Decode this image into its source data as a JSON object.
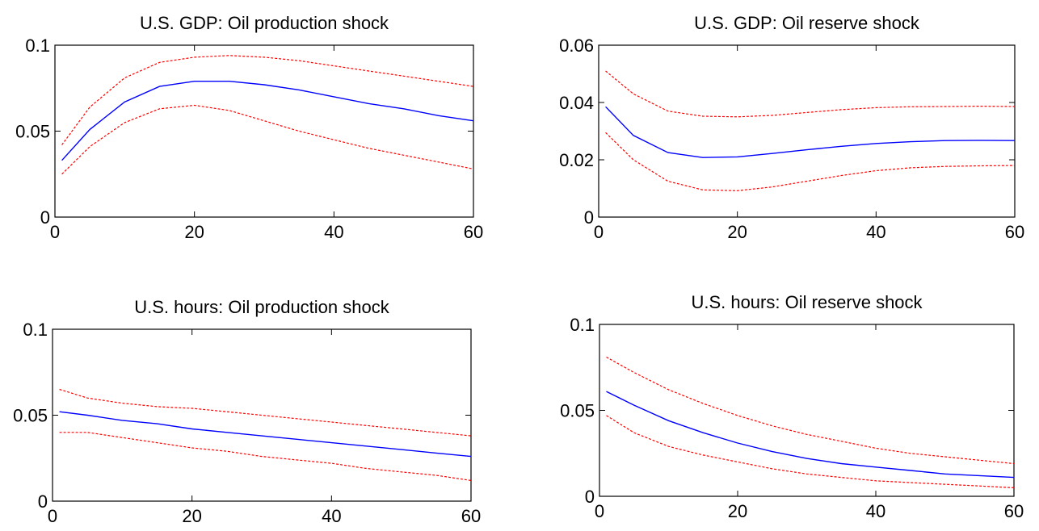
{
  "chart_data": [
    {
      "type": "line",
      "title": "U.S. GDP: Oil production shock",
      "xlim": [
        0,
        60
      ],
      "ylim": [
        0,
        0.1
      ],
      "xticks": [
        0,
        20,
        40,
        60
      ],
      "yticks": [
        0,
        0.05,
        0.1
      ],
      "xtick_labels": [
        "0",
        "20",
        "40",
        "60"
      ],
      "ytick_labels": [
        "0",
        "0.05",
        "0.1"
      ],
      "grid": false,
      "x": [
        1,
        5,
        10,
        15,
        20,
        25,
        30,
        35,
        40,
        45,
        50,
        55,
        60
      ],
      "series": [
        {
          "role": "estimate",
          "color": "#0000ff",
          "style": "solid",
          "values": [
            0.033,
            0.051,
            0.067,
            0.076,
            0.079,
            0.079,
            0.077,
            0.074,
            0.07,
            0.066,
            0.063,
            0.059,
            0.056
          ]
        },
        {
          "role": "upper",
          "color": "#ff0000",
          "style": "dashed",
          "values": [
            0.042,
            0.064,
            0.081,
            0.09,
            0.093,
            0.094,
            0.093,
            0.091,
            0.088,
            0.085,
            0.082,
            0.079,
            0.076
          ]
        },
        {
          "role": "lower",
          "color": "#ff0000",
          "style": "dashed",
          "values": [
            0.025,
            0.041,
            0.055,
            0.063,
            0.065,
            0.062,
            0.056,
            0.05,
            0.045,
            0.04,
            0.036,
            0.032,
            0.028
          ]
        }
      ]
    },
    {
      "type": "line",
      "title": "U.S. GDP: Oil reserve shock",
      "xlim": [
        0,
        60
      ],
      "ylim": [
        0,
        0.06
      ],
      "xticks": [
        0,
        20,
        40,
        60
      ],
      "yticks": [
        0,
        0.02,
        0.04,
        0.06
      ],
      "xtick_labels": [
        "0",
        "20",
        "40",
        "60"
      ],
      "ytick_labels": [
        "0",
        "0.02",
        "0.04",
        "0.06"
      ],
      "grid": false,
      "x": [
        1,
        5,
        10,
        15,
        20,
        25,
        30,
        35,
        40,
        45,
        50,
        55,
        60
      ],
      "series": [
        {
          "role": "estimate",
          "color": "#0000ff",
          "style": "solid",
          "values": [
            0.0385,
            0.0285,
            0.0225,
            0.0208,
            0.021,
            0.0222,
            0.0235,
            0.0247,
            0.0257,
            0.0263,
            0.0267,
            0.0268,
            0.0267
          ]
        },
        {
          "role": "upper",
          "color": "#ff0000",
          "style": "dashed",
          "values": [
            0.051,
            0.043,
            0.037,
            0.0352,
            0.035,
            0.0355,
            0.0365,
            0.0375,
            0.0382,
            0.0385,
            0.0386,
            0.0387,
            0.0386
          ]
        },
        {
          "role": "lower",
          "color": "#ff0000",
          "style": "dashed",
          "values": [
            0.0295,
            0.02,
            0.0125,
            0.0095,
            0.0092,
            0.0105,
            0.0125,
            0.0145,
            0.0162,
            0.0172,
            0.0177,
            0.0179,
            0.018
          ]
        }
      ]
    },
    {
      "type": "line",
      "title": "U.S. hours: Oil production shock",
      "xlim": [
        0,
        60
      ],
      "ylim": [
        0,
        0.1
      ],
      "xticks": [
        0,
        20,
        40,
        60
      ],
      "yticks": [
        0,
        0.05,
        0.1
      ],
      "xtick_labels": [
        "0",
        "20",
        "40",
        "60"
      ],
      "ytick_labels": [
        "0",
        "0.05",
        "0.1"
      ],
      "grid": false,
      "x": [
        1,
        5,
        10,
        15,
        20,
        25,
        30,
        35,
        40,
        45,
        50,
        55,
        60
      ],
      "series": [
        {
          "role": "estimate",
          "color": "#0000ff",
          "style": "solid",
          "values": [
            0.052,
            0.05,
            0.047,
            0.045,
            0.042,
            0.04,
            0.038,
            0.036,
            0.034,
            0.032,
            0.03,
            0.028,
            0.026
          ]
        },
        {
          "role": "upper",
          "color": "#ff0000",
          "style": "dashed",
          "values": [
            0.065,
            0.06,
            0.057,
            0.055,
            0.054,
            0.052,
            0.05,
            0.048,
            0.046,
            0.044,
            0.042,
            0.04,
            0.038
          ]
        },
        {
          "role": "lower",
          "color": "#ff0000",
          "style": "dashed",
          "values": [
            0.04,
            0.04,
            0.037,
            0.034,
            0.031,
            0.029,
            0.026,
            0.024,
            0.022,
            0.019,
            0.017,
            0.015,
            0.012
          ]
        }
      ]
    },
    {
      "type": "line",
      "title": "U.S. hours: Oil reserve shock",
      "xlim": [
        0,
        60
      ],
      "ylim": [
        0,
        0.1
      ],
      "xticks": [
        0,
        20,
        40,
        60
      ],
      "yticks": [
        0,
        0.05,
        0.1
      ],
      "xtick_labels": [
        "0",
        "20",
        "40",
        "60"
      ],
      "ytick_labels": [
        "0",
        "0.05",
        "0.1"
      ],
      "grid": false,
      "x": [
        1,
        5,
        10,
        15,
        20,
        25,
        30,
        35,
        40,
        45,
        50,
        55,
        60
      ],
      "series": [
        {
          "role": "estimate",
          "color": "#0000ff",
          "style": "solid",
          "values": [
            0.061,
            0.053,
            0.044,
            0.037,
            0.031,
            0.026,
            0.022,
            0.019,
            0.017,
            0.015,
            0.013,
            0.012,
            0.011
          ]
        },
        {
          "role": "upper",
          "color": "#ff0000",
          "style": "dashed",
          "values": [
            0.081,
            0.072,
            0.062,
            0.054,
            0.047,
            0.041,
            0.036,
            0.032,
            0.028,
            0.025,
            0.023,
            0.021,
            0.019
          ]
        },
        {
          "role": "lower",
          "color": "#ff0000",
          "style": "dashed",
          "values": [
            0.047,
            0.037,
            0.029,
            0.024,
            0.02,
            0.016,
            0.013,
            0.011,
            0.009,
            0.008,
            0.007,
            0.006,
            0.005
          ]
        }
      ]
    }
  ]
}
